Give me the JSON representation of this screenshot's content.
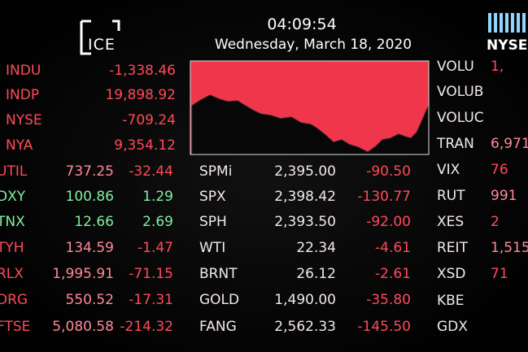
{
  "header": {
    "logo": "ICE",
    "time": "04:09:54",
    "date": "Wednesday, March 18, 2020",
    "exchange": "NYSE"
  },
  "top_left": [
    {
      "symbol": "INDU",
      "value": "-1,338.46"
    },
    {
      "symbol": "INDP",
      "value": "19,898.92"
    },
    {
      "symbol": "NYSE",
      "value": "-709.24"
    },
    {
      "symbol": "NYA",
      "value": "9,354.12"
    }
  ],
  "left": [
    {
      "symbol": "UTIL",
      "value": "737.25",
      "change": "-32.44"
    },
    {
      "symbol": "DXY",
      "value": "100.86",
      "change": "1.29"
    },
    {
      "symbol": "TNX",
      "value": "12.66",
      "change": "2.69"
    },
    {
      "symbol": "TYH",
      "value": "134.59",
      "change": "-1.47"
    },
    {
      "symbol": "RLX",
      "value": "1,995.91",
      "change": "-71.15"
    },
    {
      "symbol": "DRG",
      "value": "550.52",
      "change": "-17.31"
    },
    {
      "symbol": "FTSE",
      "value": "5,080.58",
      "change": "-214.32"
    }
  ],
  "middle": [
    {
      "symbol": "SPMi",
      "value": "2,395.00",
      "change": "-90.50"
    },
    {
      "symbol": "SPX",
      "value": "2,398.42",
      "change": "-130.77"
    },
    {
      "symbol": "SPH",
      "value": "2,393.50",
      "change": "-92.00"
    },
    {
      "symbol": "WTI",
      "value": "22.34",
      "change": "-4.61"
    },
    {
      "symbol": "BRNT",
      "value": "26.12",
      "change": "-2.61"
    },
    {
      "symbol": "GOLD",
      "value": "1,490.00",
      "change": "-35.80"
    },
    {
      "symbol": "FANG",
      "value": "2,562.33",
      "change": "-145.50"
    }
  ],
  "right": [
    {
      "symbol": "VOLU",
      "value": "1,"
    },
    {
      "symbol": "VOLUB"
    },
    {
      "symbol": "VOLUC"
    },
    {
      "symbol": "TRAN",
      "value": "6,971"
    },
    {
      "symbol": "VIX",
      "value": "76"
    },
    {
      "symbol": "RUT",
      "value": "991"
    },
    {
      "symbol": "XES",
      "value": "2"
    },
    {
      "symbol": "REIT",
      "value": "1,515"
    },
    {
      "symbol": "XSD",
      "value": "71"
    },
    {
      "symbol": "KBE"
    },
    {
      "symbol": "GDX"
    }
  ]
}
